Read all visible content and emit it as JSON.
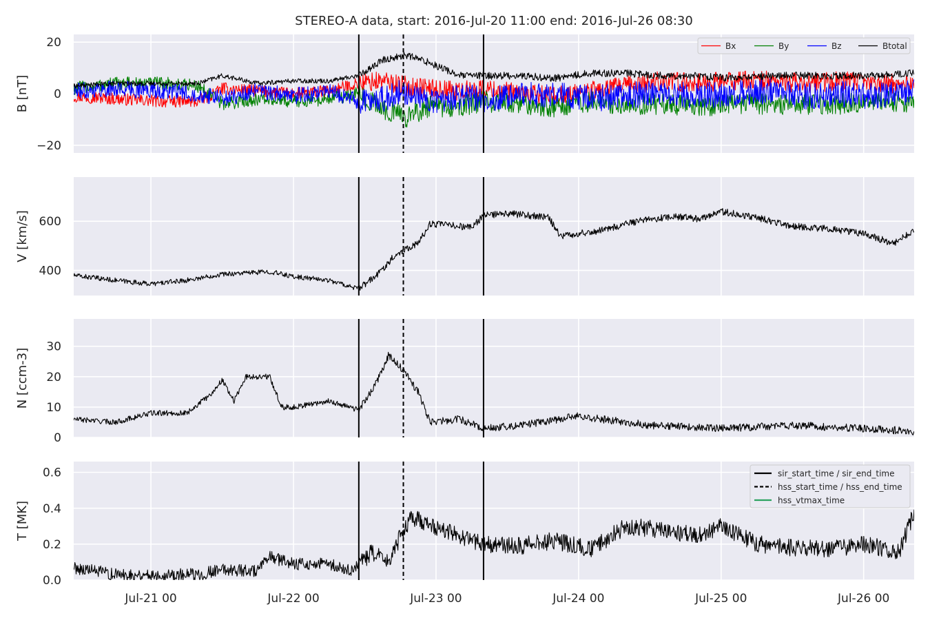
{
  "title": "STEREO-A data, start: 2016-Jul-20 11:00  end: 2016-Jul-26 08:30",
  "colors": {
    "panel_bg": "#eaeaf2",
    "grid": "#ffffff",
    "text": "#262626",
    "bx": "#ff0000",
    "by": "#008000",
    "bz": "#0000ff",
    "btotal": "#000000",
    "hss_vtmax": "#2ca25f"
  },
  "time_axis": {
    "start": "2016-07-20T11:00",
    "end": "2016-07-26T08:30",
    "tick_labels": [
      "Jul-21 00",
      "Jul-22 00",
      "Jul-23 00",
      "Jul-24 00",
      "Jul-25 00",
      "Jul-26 00"
    ]
  },
  "events": {
    "sir_start_time": "2016-07-22T11:00",
    "hss_start_time": "2016-07-22T18:30",
    "sir_end_time": "2016-07-23T08:00"
  },
  "chart_data": [
    {
      "type": "line",
      "ylabel": "B [nT]",
      "ylim": [
        -23,
        23
      ],
      "yticks": [
        -20,
        0,
        20
      ],
      "ytick_labels": [
        "−20",
        "0",
        "20"
      ],
      "legend": "top-right",
      "series": [
        {
          "name": "Bx",
          "color": "#ff0000",
          "x": [
            "2016-07-20T11:00",
            "2016-07-20T18:00",
            "2016-07-21T02:00",
            "2016-07-21T08:00",
            "2016-07-21T12:00",
            "2016-07-21T18:00",
            "2016-07-22T00:00",
            "2016-07-22T06:00",
            "2016-07-22T11:00",
            "2016-07-22T15:00",
            "2016-07-22T19:00",
            "2016-07-22T23:00",
            "2016-07-23T04:00",
            "2016-07-23T08:00",
            "2016-07-23T14:00",
            "2016-07-23T20:00",
            "2016-07-24T02:00",
            "2016-07-24T08:00",
            "2016-07-24T14:00",
            "2016-07-24T20:00",
            "2016-07-25T02:00",
            "2016-07-25T08:00",
            "2016-07-25T14:00",
            "2016-07-25T20:00",
            "2016-07-26T02:00",
            "2016-07-26T08:30"
          ],
          "values": [
            -1,
            -2,
            -3,
            -3,
            2,
            1,
            0,
            1,
            4,
            5,
            3,
            2,
            1,
            2,
            0,
            -1,
            1,
            3,
            5,
            4,
            5,
            5,
            4,
            5,
            4,
            4
          ]
        },
        {
          "name": "By",
          "color": "#008000",
          "x": [
            "2016-07-20T11:00",
            "2016-07-20T18:00",
            "2016-07-21T02:00",
            "2016-07-21T08:00",
            "2016-07-21T12:00",
            "2016-07-21T18:00",
            "2016-07-22T00:00",
            "2016-07-22T06:00",
            "2016-07-22T11:00",
            "2016-07-22T15:00",
            "2016-07-22T19:00",
            "2016-07-22T23:00",
            "2016-07-23T04:00",
            "2016-07-23T08:00",
            "2016-07-23T14:00",
            "2016-07-23T20:00",
            "2016-07-24T02:00",
            "2016-07-24T08:00",
            "2016-07-24T14:00",
            "2016-07-24T20:00",
            "2016-07-25T02:00",
            "2016-07-25T08:00",
            "2016-07-25T14:00",
            "2016-07-25T20:00",
            "2016-07-26T02:00",
            "2016-07-26T08:30"
          ],
          "values": [
            2,
            4,
            4,
            3,
            -4,
            -2,
            -3,
            -2,
            0,
            -6,
            -9,
            -5,
            -5,
            -3,
            -4,
            -5,
            -3,
            -4,
            -4,
            -5,
            -4,
            -4,
            -4,
            -4,
            -3,
            -3
          ]
        },
        {
          "name": "Bz",
          "color": "#0000ff",
          "x": [
            "2016-07-20T11:00",
            "2016-07-20T18:00",
            "2016-07-21T02:00",
            "2016-07-21T08:00",
            "2016-07-21T12:00",
            "2016-07-21T18:00",
            "2016-07-22T00:00",
            "2016-07-22T06:00",
            "2016-07-22T11:00",
            "2016-07-22T15:00",
            "2016-07-22T19:00",
            "2016-07-22T23:00",
            "2016-07-23T04:00",
            "2016-07-23T08:00",
            "2016-07-23T14:00",
            "2016-07-23T20:00",
            "2016-07-24T02:00",
            "2016-07-24T08:00",
            "2016-07-24T14:00",
            "2016-07-24T20:00",
            "2016-07-25T02:00",
            "2016-07-25T08:00",
            "2016-07-25T14:00",
            "2016-07-25T20:00",
            "2016-07-26T02:00",
            "2016-07-26T08:30"
          ],
          "values": [
            1,
            2,
            1,
            0,
            -2,
            1,
            -1,
            1,
            -3,
            -2,
            1,
            -3,
            -1,
            -2,
            -1,
            0,
            -2,
            -1,
            1,
            -1,
            0,
            1,
            -1,
            0,
            -1,
            1
          ]
        },
        {
          "name": "Btotal",
          "color": "#000000",
          "x": [
            "2016-07-20T11:00",
            "2016-07-20T18:00",
            "2016-07-21T02:00",
            "2016-07-21T08:00",
            "2016-07-21T12:00",
            "2016-07-21T18:00",
            "2016-07-22T00:00",
            "2016-07-22T06:00",
            "2016-07-22T11:00",
            "2016-07-22T15:00",
            "2016-07-22T19:00",
            "2016-07-22T23:00",
            "2016-07-23T04:00",
            "2016-07-23T08:00",
            "2016-07-23T14:00",
            "2016-07-23T20:00",
            "2016-07-24T02:00",
            "2016-07-24T08:00",
            "2016-07-24T14:00",
            "2016-07-24T20:00",
            "2016-07-25T02:00",
            "2016-07-25T08:00",
            "2016-07-25T14:00",
            "2016-07-25T20:00",
            "2016-07-26T02:00",
            "2016-07-26T08:30"
          ],
          "values": [
            3,
            4,
            4,
            4,
            7,
            4,
            5,
            5,
            7,
            13,
            15,
            12,
            7,
            7,
            7,
            6,
            8,
            8,
            7,
            7,
            6,
            7,
            7,
            7,
            7,
            8
          ]
        }
      ]
    },
    {
      "type": "line",
      "ylabel": "V [km/s]",
      "ylim": [
        298,
        780
      ],
      "yticks": [
        400,
        600
      ],
      "ytick_labels": [
        "400",
        "600"
      ],
      "series": [
        {
          "color": "#000000",
          "x": [
            "2016-07-20T11:00",
            "2016-07-20T18:00",
            "2016-07-21T00:00",
            "2016-07-21T06:00",
            "2016-07-21T12:00",
            "2016-07-21T20:00",
            "2016-07-22T00:00",
            "2016-07-22T06:00",
            "2016-07-22T11:00",
            "2016-07-22T14:00",
            "2016-07-22T17:00",
            "2016-07-22T19:00",
            "2016-07-22T21:00",
            "2016-07-22T23:00",
            "2016-07-23T02:00",
            "2016-07-23T06:00",
            "2016-07-23T08:00",
            "2016-07-23T13:00",
            "2016-07-23T19:00",
            "2016-07-23T21:00",
            "2016-07-24T03:00",
            "2016-07-24T10:00",
            "2016-07-24T16:00",
            "2016-07-24T20:00",
            "2016-07-25T00:00",
            "2016-07-25T06:00",
            "2016-07-25T12:00",
            "2016-07-25T18:00",
            "2016-07-26T00:00",
            "2016-07-26T05:00",
            "2016-07-26T08:30"
          ],
          "values": [
            380,
            360,
            345,
            360,
            385,
            395,
            375,
            360,
            325,
            380,
            460,
            490,
            510,
            590,
            585,
            575,
            625,
            630,
            615,
            540,
            560,
            600,
            620,
            610,
            640,
            615,
            580,
            570,
            550,
            510,
            560
          ]
        }
      ]
    },
    {
      "type": "line",
      "ylabel": "N [ccm-3]",
      "ylim": [
        0,
        39
      ],
      "yticks": [
        0,
        10,
        20,
        30
      ],
      "ytick_labels": [
        "0",
        "10",
        "20",
        "30"
      ],
      "series": [
        {
          "color": "#000000",
          "x": [
            "2016-07-20T11:00",
            "2016-07-20T18:00",
            "2016-07-21T00:00",
            "2016-07-21T06:00",
            "2016-07-21T10:00",
            "2016-07-21T12:00",
            "2016-07-21T14:00",
            "2016-07-21T16:00",
            "2016-07-21T20:00",
            "2016-07-21T22:00",
            "2016-07-22T00:00",
            "2016-07-22T06:00",
            "2016-07-22T11:00",
            "2016-07-22T14:00",
            "2016-07-22T16:00",
            "2016-07-22T18:30",
            "2016-07-22T21:00",
            "2016-07-22T23:00",
            "2016-07-23T04:00",
            "2016-07-23T08:00",
            "2016-07-23T14:00",
            "2016-07-24T00:00",
            "2016-07-24T12:00",
            "2016-07-25T00:00",
            "2016-07-25T12:00",
            "2016-07-26T00:00",
            "2016-07-26T08:30"
          ],
          "values": [
            6,
            5,
            8,
            8,
            14,
            19,
            12,
            20,
            20,
            10,
            10,
            12,
            9,
            18,
            27,
            22,
            15,
            5,
            6,
            3,
            4,
            7,
            4,
            3,
            4,
            3,
            2
          ]
        }
      ]
    },
    {
      "type": "line",
      "ylabel": "T [MK]",
      "ylim": [
        0,
        0.66
      ],
      "yticks": [
        0.0,
        0.2,
        0.4,
        0.6
      ],
      "ytick_labels": [
        "0.0",
        "0.2",
        "0.4",
        "0.6"
      ],
      "legend": "top-right",
      "legend_entries": [
        {
          "label": "sir_start_time / sir_end_time",
          "style": "solid",
          "color": "#000000"
        },
        {
          "label": "hss_start_time / hss_end_time",
          "style": "dashed",
          "color": "#000000"
        },
        {
          "label": "hss_vtmax_time",
          "style": "solid",
          "color": "#2ca25f"
        }
      ],
      "series": [
        {
          "color": "#000000",
          "x": [
            "2016-07-20T11:00",
            "2016-07-20T18:00",
            "2016-07-21T02:00",
            "2016-07-21T08:00",
            "2016-07-21T12:00",
            "2016-07-21T18:00",
            "2016-07-21T20:00",
            "2016-07-22T00:00",
            "2016-07-22T06:00",
            "2016-07-22T09:00",
            "2016-07-22T11:00",
            "2016-07-22T13:00",
            "2016-07-22T16:00",
            "2016-07-22T18:30",
            "2016-07-22T20:00",
            "2016-07-23T02:00",
            "2016-07-23T08:00",
            "2016-07-23T14:00",
            "2016-07-23T20:00",
            "2016-07-24T02:00",
            "2016-07-24T08:00",
            "2016-07-24T14:00",
            "2016-07-24T20:00",
            "2016-07-25T00:00",
            "2016-07-25T06:00",
            "2016-07-25T12:00",
            "2016-07-25T18:00",
            "2016-07-26T00:00",
            "2016-07-26T06:00",
            "2016-07-26T08:30"
          ],
          "values": [
            0.07,
            0.03,
            0.03,
            0.03,
            0.06,
            0.05,
            0.13,
            0.09,
            0.09,
            0.05,
            0.08,
            0.15,
            0.1,
            0.28,
            0.35,
            0.27,
            0.2,
            0.19,
            0.22,
            0.17,
            0.3,
            0.28,
            0.25,
            0.3,
            0.2,
            0.18,
            0.17,
            0.2,
            0.16,
            0.38
          ]
        }
      ]
    }
  ]
}
